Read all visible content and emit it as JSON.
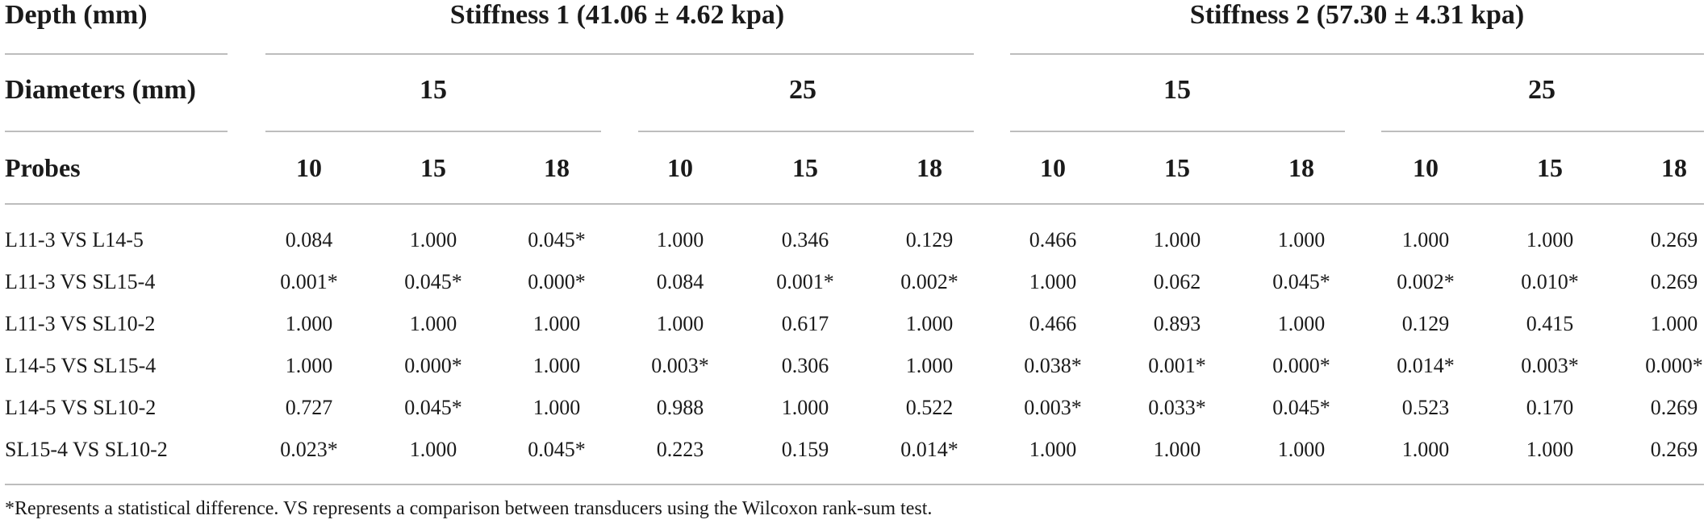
{
  "header": {
    "depth_label": "Depth (mm)",
    "diameters_label": "Diameters (mm)",
    "probes_label": "Probes",
    "stiffness1": "Stiffness 1 (41.06 ± 4.62 kpa)",
    "stiffness2": "Stiffness 2 (57.30 ± 4.31 kpa)",
    "diameters": [
      "15",
      "25",
      "15",
      "25"
    ],
    "depths": [
      "10",
      "15",
      "18",
      "10",
      "15",
      "18",
      "10",
      "15",
      "18",
      "10",
      "15",
      "18"
    ]
  },
  "rows": [
    {
      "label": "L11-3 VS L14-5",
      "values": [
        "0.084",
        "1.000",
        "0.045*",
        "1.000",
        "0.346",
        "0.129",
        "0.466",
        "1.000",
        "1.000",
        "1.000",
        "1.000",
        "0.269"
      ]
    },
    {
      "label": "L11-3 VS SL15-4",
      "values": [
        "0.001*",
        "0.045*",
        "0.000*",
        "0.084",
        "0.001*",
        "0.002*",
        "1.000",
        "0.062",
        "0.045*",
        "0.002*",
        "0.010*",
        "0.269"
      ]
    },
    {
      "label": "L11-3 VS SL10-2",
      "values": [
        "1.000",
        "1.000",
        "1.000",
        "1.000",
        "0.617",
        "1.000",
        "0.466",
        "0.893",
        "1.000",
        "0.129",
        "0.415",
        "1.000"
      ]
    },
    {
      "label": "L14-5 VS SL15-4",
      "values": [
        "1.000",
        "0.000*",
        "1.000",
        "0.003*",
        "0.306",
        "1.000",
        "0.038*",
        "0.001*",
        "0.000*",
        "0.014*",
        "0.003*",
        "0.000*"
      ]
    },
    {
      "label": "L14-5 VS SL10-2",
      "values": [
        "0.727",
        "0.045*",
        "1.000",
        "0.988",
        "1.000",
        "0.522",
        "0.003*",
        "0.033*",
        "0.045*",
        "0.523",
        "0.170",
        "0.269"
      ]
    },
    {
      "label": "SL15-4 VS SL10-2",
      "values": [
        "0.023*",
        "1.000",
        "0.045*",
        "0.223",
        "0.159",
        "0.014*",
        "1.000",
        "1.000",
        "1.000",
        "1.000",
        "1.000",
        "0.269"
      ]
    }
  ],
  "footnote": "*Represents a statistical difference. VS represents a comparison between transducers using the Wilcoxon rank-sum test."
}
